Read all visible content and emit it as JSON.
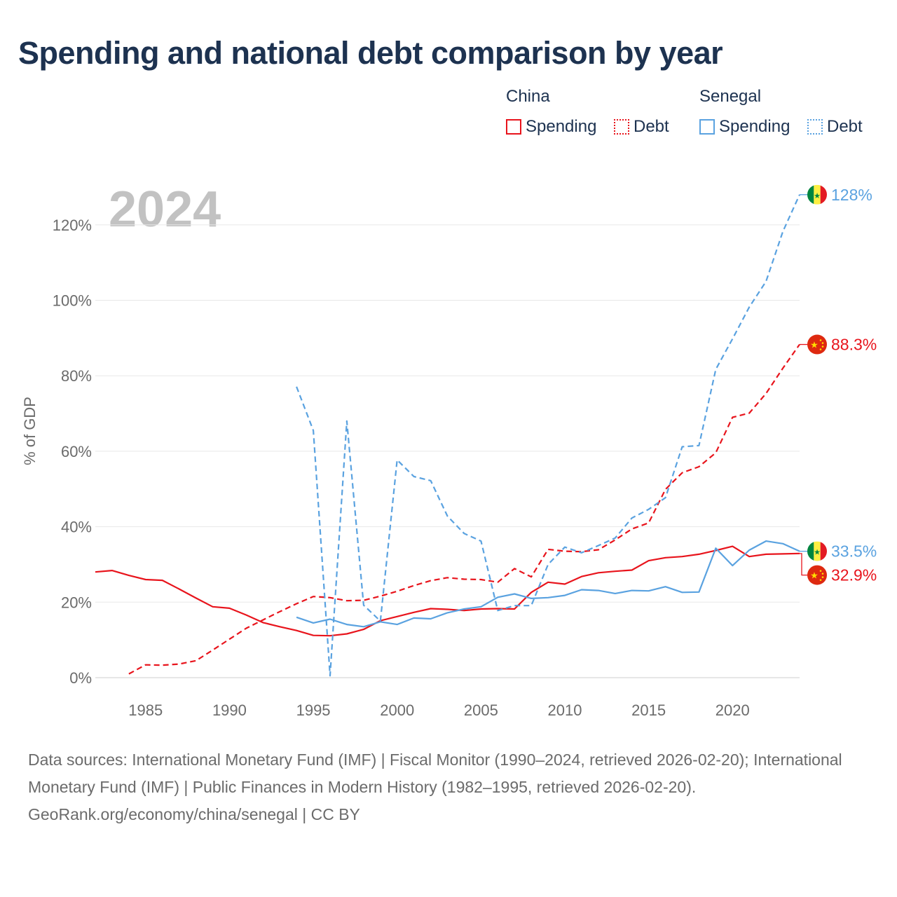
{
  "title": "Spending and national debt comparison by year",
  "legend": {
    "groups": [
      {
        "label": "China",
        "spending_label": "Spending",
        "debt_label": "Debt",
        "color": "#e8141c"
      },
      {
        "label": "Senegal",
        "spending_label": "Spending",
        "debt_label": "Debt",
        "color": "#5aa2e0"
      }
    ]
  },
  "year_watermark": "2024",
  "footer": {
    "sources": "Data sources: International Monetary Fund (IMF) | Fiscal Monitor (1990–2024, retrieved 2026-02-20); International Monetary Fund (IMF) | Public Finances in Modern History (1982–1995, retrieved 2026-02-20).",
    "credit": "GeoRank.org/economy/china/senegal | CC BY"
  },
  "chart_data": {
    "type": "line",
    "title": "Spending and national debt comparison by year",
    "ylabel": "% of GDP",
    "xlabel": "",
    "xlim": [
      1982,
      2024
    ],
    "ylim": [
      0,
      130
    ],
    "x_ticks": [
      1985,
      1990,
      1995,
      2000,
      2005,
      2010,
      2015,
      2020
    ],
    "y_ticks": [
      0,
      20,
      40,
      60,
      80,
      100,
      120
    ],
    "y_tick_labels": [
      "0%",
      "20%",
      "40%",
      "60%",
      "80%",
      "100%",
      "120%"
    ],
    "grid": true,
    "series": [
      {
        "name": "China Spending",
        "country": "China",
        "kind": "spending",
        "color": "#e8141c",
        "dash": "solid",
        "end_label": "32.9%",
        "x": [
          1982,
          1983,
          1984,
          1985,
          1986,
          1987,
          1988,
          1989,
          1990,
          1991,
          1992,
          1993,
          1994,
          1995,
          1996,
          1997,
          1998,
          1999,
          2000,
          2001,
          2002,
          2003,
          2004,
          2005,
          2006,
          2007,
          2008,
          2009,
          2010,
          2011,
          2012,
          2013,
          2014,
          2015,
          2016,
          2017,
          2018,
          2019,
          2020,
          2021,
          2022,
          2023,
          2024
        ],
        "values": [
          28.0,
          28.4,
          27.1,
          26.0,
          25.8,
          23.5,
          21.1,
          18.8,
          18.4,
          16.6,
          14.6,
          13.5,
          12.5,
          11.2,
          11.1,
          11.6,
          12.8,
          15.1,
          16.2,
          17.3,
          18.3,
          18.1,
          17.8,
          18.2,
          18.3,
          18.2,
          22.6,
          25.3,
          24.8,
          26.8,
          27.8,
          28.2,
          28.5,
          31.0,
          31.8,
          32.1,
          32.7,
          33.7,
          34.8,
          32.1,
          32.7,
          32.8,
          32.9
        ]
      },
      {
        "name": "China Debt",
        "country": "China",
        "kind": "debt",
        "color": "#e8141c",
        "dash": "dashed",
        "end_label": "88.3%",
        "x": [
          1984,
          1985,
          1986,
          1987,
          1988,
          1989,
          1990,
          1991,
          1992,
          1993,
          1994,
          1995,
          1996,
          1997,
          1998,
          1999,
          2000,
          2001,
          2002,
          2003,
          2004,
          2005,
          2006,
          2007,
          2008,
          2009,
          2010,
          2011,
          2012,
          2013,
          2014,
          2015,
          2016,
          2017,
          2018,
          2019,
          2020,
          2021,
          2022,
          2023,
          2024
        ],
        "values": [
          1.0,
          3.4,
          3.3,
          3.6,
          4.5,
          7.3,
          10.2,
          13.1,
          15.3,
          17.5,
          19.6,
          21.5,
          21.2,
          20.4,
          20.5,
          21.6,
          22.9,
          24.4,
          25.7,
          26.5,
          26.1,
          26.0,
          25.3,
          28.9,
          26.7,
          34.0,
          33.5,
          33.4,
          33.9,
          36.5,
          39.4,
          41.0,
          49.9,
          54.3,
          55.9,
          59.6,
          69.0,
          70.1,
          75.3,
          82.0,
          88.3
        ]
      },
      {
        "name": "Senegal Spending",
        "country": "Senegal",
        "kind": "spending",
        "color": "#5aa2e0",
        "dash": "solid",
        "end_label": "33.5%",
        "x": [
          1994,
          1995,
          1996,
          1997,
          1998,
          1999,
          2000,
          2001,
          2002,
          2003,
          2004,
          2005,
          2006,
          2007,
          2008,
          2009,
          2010,
          2011,
          2012,
          2013,
          2014,
          2015,
          2016,
          2017,
          2018,
          2019,
          2020,
          2021,
          2022,
          2023,
          2024
        ],
        "values": [
          16.0,
          14.5,
          15.5,
          14.1,
          13.5,
          14.8,
          14.1,
          15.8,
          15.6,
          17.2,
          18.2,
          18.8,
          21.3,
          22.2,
          21.0,
          21.2,
          21.8,
          23.3,
          23.1,
          22.3,
          23.1,
          23.0,
          24.1,
          22.6,
          22.7,
          34.3,
          29.7,
          33.8,
          36.2,
          35.5,
          33.5
        ]
      },
      {
        "name": "Senegal Debt",
        "country": "Senegal",
        "kind": "debt",
        "color": "#5aa2e0",
        "dash": "dashed",
        "end_label": "128%",
        "x": [
          1994,
          1995,
          1996,
          1997,
          1998,
          1999,
          2000,
          2001,
          2002,
          2003,
          2004,
          2005,
          2006,
          2007,
          2008,
          2009,
          2010,
          2011,
          2012,
          2013,
          2014,
          2015,
          2016,
          2017,
          2018,
          2019,
          2020,
          2021,
          2022,
          2023,
          2024
        ],
        "values": [
          77.1,
          65.5,
          0.5,
          68.0,
          19.2,
          15.0,
          57.7,
          53.3,
          52.2,
          42.8,
          38.2,
          36.2,
          17.8,
          19.1,
          19.1,
          30.0,
          34.6,
          33.1,
          35.0,
          37.0,
          42.3,
          44.6,
          47.7,
          61.2,
          61.5,
          81.7,
          89.8,
          98.2,
          105.0,
          118.2,
          128.0
        ]
      }
    ]
  }
}
